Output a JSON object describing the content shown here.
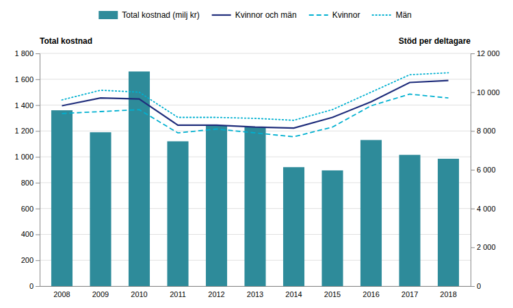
{
  "chart_data": {
    "type": "bar",
    "y_label": "Total kostnad",
    "y2_label": "Stöd per deltagare",
    "categories": [
      "2008",
      "2009",
      "2010",
      "2011",
      "2012",
      "2013",
      "2014",
      "2015",
      "2016",
      "2017",
      "2018"
    ],
    "series": [
      {
        "name": "Total kostnad (milj kr)",
        "type": "bar",
        "color": "#2e8b9a",
        "values": [
          1360,
          1190,
          1660,
          1120,
          1240,
          1230,
          920,
          895,
          1130,
          1015,
          985
        ]
      },
      {
        "name": "Kvinnor och män",
        "type": "line",
        "axis": "y2",
        "color": "#1f2d7b",
        "line_style": "solid",
        "values": [
          9300,
          9700,
          9650,
          8300,
          8300,
          8200,
          8150,
          8700,
          9500,
          10500,
          10600
        ]
      },
      {
        "name": "Kvinnor",
        "type": "line",
        "axis": "y2",
        "color": "#00b0d0",
        "line_style": "dashed",
        "values": [
          8900,
          9000,
          9100,
          7900,
          8100,
          7900,
          7700,
          8200,
          9300,
          9900,
          9700
        ]
      },
      {
        "name": "Män",
        "type": "line",
        "axis": "y2",
        "color": "#00b0d0",
        "line_style": "dotted",
        "values": [
          9600,
          10100,
          10000,
          8700,
          8700,
          8650,
          8550,
          9100,
          10000,
          10900,
          11000
        ]
      }
    ],
    "ylim": [
      0,
      1800
    ],
    "yticks": [
      0,
      200,
      400,
      600,
      800,
      {
        "value": 1000,
        "label": "1 000"
      },
      {
        "value": 1200,
        "label": "1 200"
      },
      {
        "value": 1400,
        "label": "1 400"
      },
      {
        "value": 1600,
        "label": "1 600"
      },
      {
        "value": 1800,
        "label": "1 800"
      }
    ],
    "y2lim": [
      0,
      12000
    ],
    "y2ticks": [
      0,
      {
        "value": 2000,
        "label": "2 000"
      },
      {
        "value": 4000,
        "label": "4 000"
      },
      {
        "value": 6000,
        "label": "6 000"
      },
      {
        "value": 8000,
        "label": "8 000"
      },
      {
        "value": 10000,
        "label": "10 000"
      },
      {
        "value": 12000,
        "label": "12 000"
      }
    ],
    "grid": true,
    "legend": "top"
  }
}
